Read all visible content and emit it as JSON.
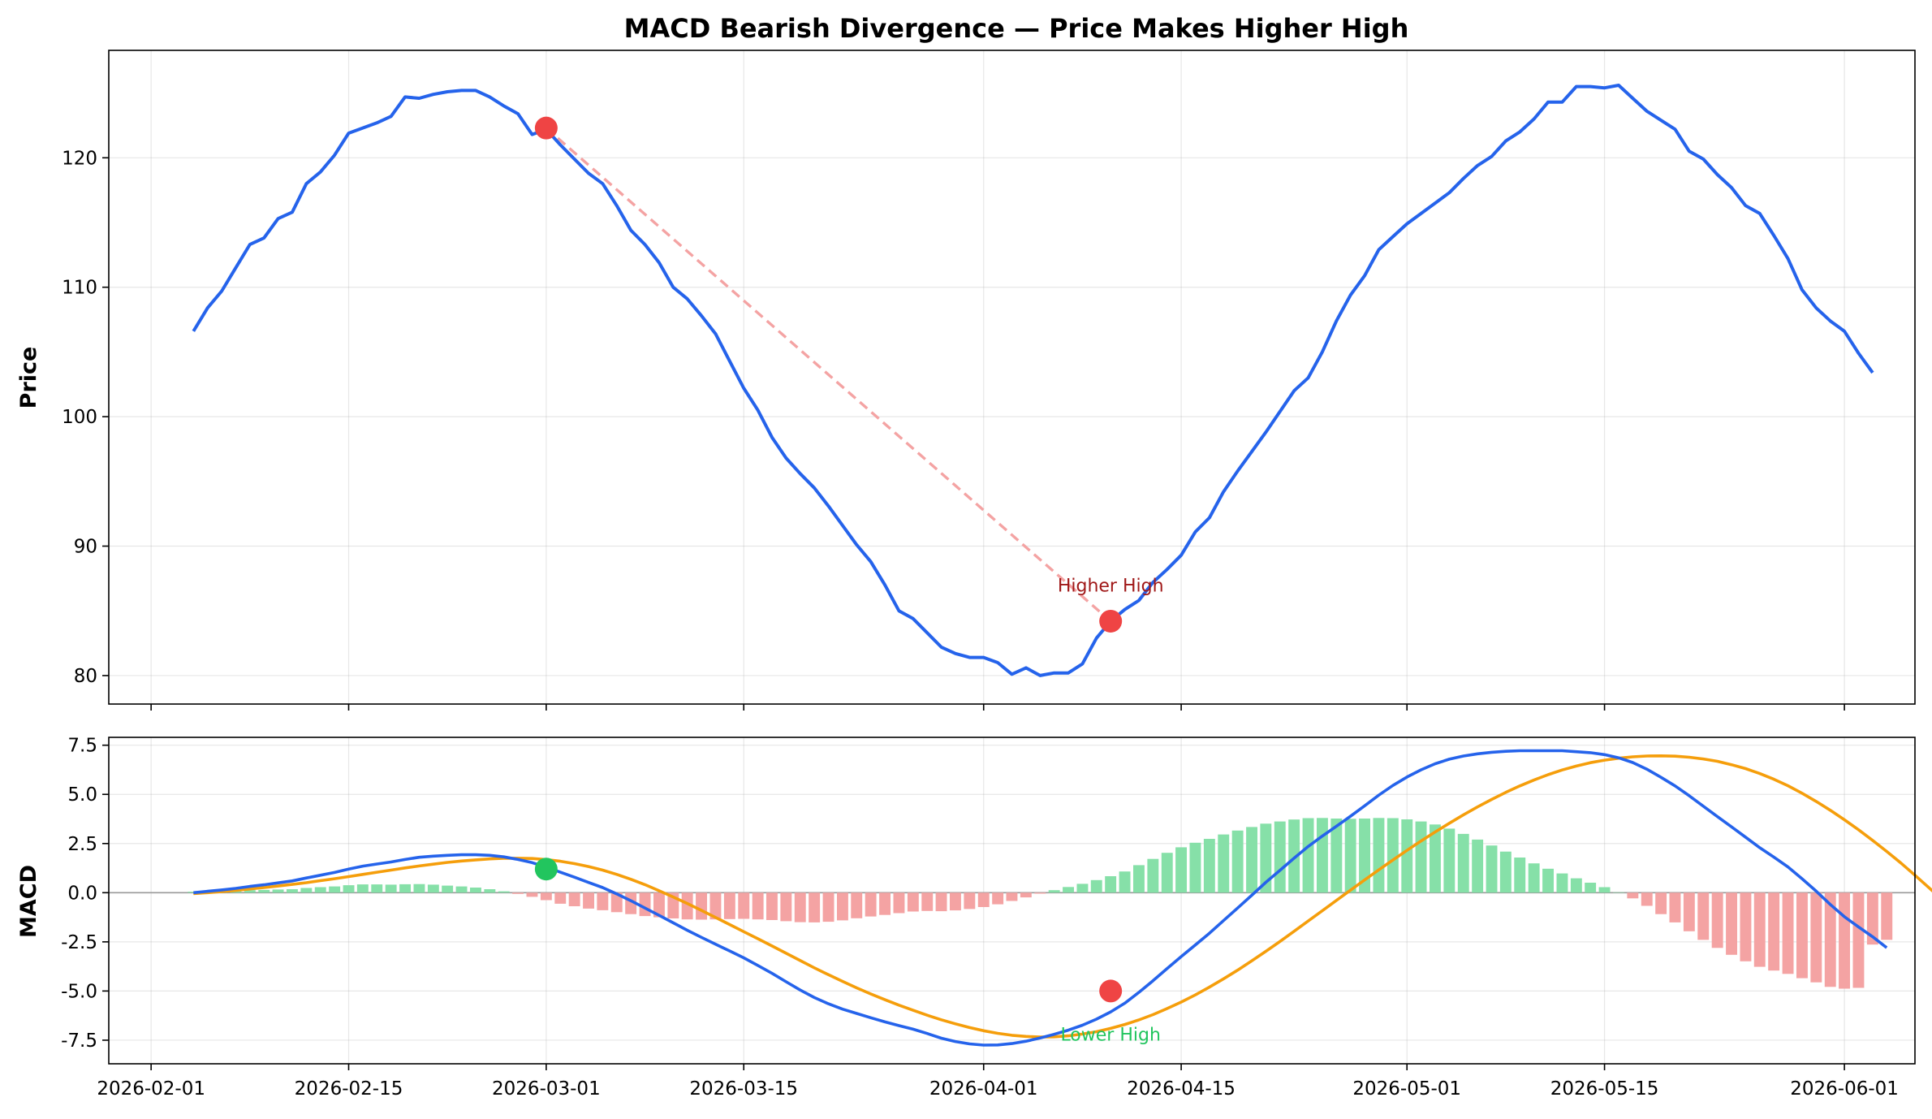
{
  "title": "MACD Bearish Divergence — Price Makes Higher High",
  "colors": {
    "price": "#2563eb",
    "macd": "#2563eb",
    "signal": "#f59e0b",
    "hist_pos": "#86e0a8",
    "hist_neg": "#f4a3a3",
    "marker_red": "#ef4444",
    "marker_green": "#22c55e",
    "divergence_line": "#f4a3a3",
    "annot_price": "#a01818",
    "annot_macd": "#22c55e"
  },
  "chart_data": [
    {
      "type": "line",
      "panel": "price",
      "ylabel": "Price",
      "ylim": [
        77.8,
        128.3
      ],
      "yticks": [
        80,
        90,
        100,
        110,
        120
      ],
      "x_start": "2026-02-04",
      "x_step_days": 1,
      "series": [
        {
          "values": [
            106.6,
            108.4,
            109.7,
            111.5,
            113.3,
            113.8,
            115.3,
            115.8,
            118.0,
            118.9,
            120.2,
            121.9,
            122.3,
            122.7,
            123.2,
            124.7,
            124.6,
            124.9,
            125.1,
            125.2,
            125.2,
            124.7,
            124.0,
            123.4,
            121.8,
            122.2,
            121.0,
            119.9,
            118.8,
            118.0,
            116.3,
            114.4,
            113.3,
            111.9,
            110.0,
            109.1,
            107.8,
            106.4,
            104.3,
            102.2,
            100.5,
            98.4,
            96.8,
            95.6,
            94.5,
            93.1,
            91.6,
            90.1,
            88.8,
            87.0,
            85.0,
            84.4,
            83.3,
            82.2,
            81.7,
            81.4,
            81.4,
            81.0,
            80.1,
            80.6,
            80.0,
            80.2,
            80.2,
            80.9,
            82.9,
            84.2,
            85.1,
            85.8,
            87.2,
            88.2,
            89.3,
            91.1,
            92.2,
            94.2,
            95.8,
            97.3,
            98.8,
            100.4,
            102.0,
            103.0,
            105.0,
            107.4,
            109.4,
            110.9,
            112.9,
            113.9,
            114.9,
            115.7,
            116.5,
            117.3,
            118.4,
            119.4,
            120.1,
            121.3,
            122.0,
            123.0,
            124.3,
            124.3,
            125.5,
            125.5,
            125.4,
            125.6,
            124.6,
            123.6,
            122.9,
            122.2,
            120.5,
            119.9,
            118.7,
            117.7,
            116.3,
            115.7,
            114.0,
            112.2,
            109.8,
            108.4,
            107.4,
            106.6,
            104.9,
            103.4
          ]
        }
      ],
      "markers": [
        {
          "x": "2026-03-01",
          "y": 122.3
        },
        {
          "x": "2026-04-10",
          "y": 84.2
        }
      ],
      "annotations": [
        {
          "text": "Higher High",
          "x": "2026-04-10",
          "y": 87.0
        }
      ]
    },
    {
      "type": "line+bar",
      "panel": "macd",
      "ylabel": "MACD",
      "ylim": [
        -8.7,
        7.9
      ],
      "yticks": [
        -7.5,
        -5.0,
        -2.5,
        0.0,
        2.5,
        5.0,
        7.5
      ],
      "ytick_labels": [
        "-7.5",
        "-5.0",
        "-2.5",
        "0.0",
        "2.5",
        "5.0",
        "7.5"
      ],
      "x_start": "2026-02-04",
      "x_step_days": 1,
      "series": [
        {
          "name": "MACD",
          "values": [
            0.0,
            0.07,
            0.14,
            0.22,
            0.32,
            0.4,
            0.5,
            0.6,
            0.75,
            0.89,
            1.03,
            1.2,
            1.35,
            1.46,
            1.56,
            1.69,
            1.8,
            1.86,
            1.9,
            1.93,
            1.93,
            1.9,
            1.82,
            1.69,
            1.53,
            1.3,
            1.04,
            0.79,
            0.52,
            0.26,
            -0.06,
            -0.41,
            -0.78,
            -1.15,
            -1.53,
            -1.91,
            -2.27,
            -2.62,
            -2.96,
            -3.31,
            -3.7,
            -4.1,
            -4.53,
            -4.95,
            -5.33,
            -5.65,
            -5.92,
            -6.14,
            -6.36,
            -6.57,
            -6.76,
            -6.94,
            -7.16,
            -7.4,
            -7.57,
            -7.69,
            -7.75,
            -7.74,
            -7.67,
            -7.55,
            -7.39,
            -7.2,
            -6.99,
            -6.74,
            -6.43,
            -6.06,
            -5.62,
            -5.07,
            -4.48,
            -3.86,
            -3.25,
            -2.66,
            -2.06,
            -1.42,
            -0.78,
            -0.13,
            0.53,
            1.14,
            1.76,
            2.35,
            2.88,
            3.38,
            3.89,
            4.42,
            4.96,
            5.45,
            5.88,
            6.25,
            6.56,
            6.79,
            6.95,
            7.06,
            7.14,
            7.19,
            7.22,
            7.22,
            7.22,
            7.22,
            7.17,
            7.12,
            7.02,
            6.86,
            6.62,
            6.28,
            5.87,
            5.43,
            4.93,
            4.4,
            3.87,
            3.35,
            2.82,
            2.29,
            1.81,
            1.31,
            0.71,
            0.08,
            -0.6,
            -1.22,
            -1.74,
            -2.24,
            -2.8
          ]
        },
        {
          "name": "Signal",
          "values": [
            -0.05,
            0.0,
            0.06,
            0.12,
            0.19,
            0.26,
            0.34,
            0.42,
            0.51,
            0.61,
            0.71,
            0.82,
            0.93,
            1.04,
            1.15,
            1.26,
            1.36,
            1.45,
            1.54,
            1.61,
            1.67,
            1.72,
            1.75,
            1.75,
            1.74,
            1.68,
            1.6,
            1.48,
            1.33,
            1.15,
            0.93,
            0.68,
            0.41,
            0.1,
            -0.22,
            -0.55,
            -0.9,
            -1.26,
            -1.62,
            -1.98,
            -2.34,
            -2.71,
            -3.08,
            -3.45,
            -3.82,
            -4.17,
            -4.51,
            -4.84,
            -5.15,
            -5.44,
            -5.72,
            -5.98,
            -6.23,
            -6.46,
            -6.67,
            -6.86,
            -7.02,
            -7.15,
            -7.25,
            -7.31,
            -7.34,
            -7.33,
            -7.28,
            -7.19,
            -7.07,
            -6.9,
            -6.7,
            -6.47,
            -6.2,
            -5.89,
            -5.56,
            -5.2,
            -4.8,
            -4.38,
            -3.94,
            -3.47,
            -2.98,
            -2.48,
            -1.96,
            -1.44,
            -0.92,
            -0.39,
            0.13,
            0.65,
            1.16,
            1.66,
            2.15,
            2.63,
            3.09,
            3.53,
            3.96,
            4.36,
            4.74,
            5.1,
            5.43,
            5.73,
            6.0,
            6.24,
            6.44,
            6.61,
            6.74,
            6.84,
            6.91,
            6.95,
            6.96,
            6.94,
            6.89,
            6.8,
            6.68,
            6.51,
            6.31,
            6.06,
            5.77,
            5.44,
            5.06,
            4.64,
            4.19,
            3.71,
            3.2,
            2.66,
            2.1,
            1.51,
            0.89,
            0.25,
            -0.4,
            -0.6
          ]
        },
        {
          "name": "Histogram",
          "values": [
            0.05,
            0.07,
            0.08,
            0.1,
            0.13,
            0.14,
            0.16,
            0.18,
            0.24,
            0.28,
            0.32,
            0.38,
            0.42,
            0.42,
            0.41,
            0.43,
            0.44,
            0.41,
            0.36,
            0.32,
            0.26,
            0.18,
            0.07,
            -0.06,
            -0.21,
            -0.38,
            -0.56,
            -0.69,
            -0.81,
            -0.89,
            -0.99,
            -1.09,
            -1.19,
            -1.25,
            -1.31,
            -1.36,
            -1.37,
            -1.36,
            -1.34,
            -1.33,
            -1.36,
            -1.39,
            -1.45,
            -1.5,
            -1.51,
            -1.48,
            -1.41,
            -1.3,
            -1.21,
            -1.13,
            -1.04,
            -0.96,
            -0.93,
            -0.94,
            -0.9,
            -0.83,
            -0.73,
            -0.59,
            -0.42,
            -0.24,
            -0.05,
            0.13,
            0.29,
            0.45,
            0.64,
            0.84,
            1.08,
            1.4,
            1.72,
            2.03,
            2.31,
            2.54,
            2.74,
            2.96,
            3.16,
            3.34,
            3.51,
            3.62,
            3.72,
            3.79,
            3.8,
            3.77,
            3.76,
            3.77,
            3.8,
            3.79,
            3.73,
            3.62,
            3.47,
            3.26,
            2.99,
            2.7,
            2.4,
            2.09,
            1.79,
            1.49,
            1.22,
            0.98,
            0.73,
            0.51,
            0.28,
            0.02,
            -0.29,
            -0.67,
            -1.09,
            -1.51,
            -1.96,
            -2.4,
            -2.81,
            -3.16,
            -3.49,
            -3.77,
            -3.96,
            -4.13,
            -4.35,
            -4.56,
            -4.79,
            -4.88,
            -4.84,
            -2.64,
            -2.4
          ]
        }
      ],
      "markers": [
        {
          "x": "2026-03-01",
          "y": 1.2,
          "color": "green"
        },
        {
          "x": "2026-04-10",
          "y": -5.0,
          "color": "red"
        }
      ],
      "annotations": [
        {
          "text": "Lower High",
          "x": "2026-04-10",
          "y": -7.2
        }
      ]
    }
  ],
  "xaxis": {
    "ticks": [
      "2026-02-01",
      "2026-02-15",
      "2026-03-01",
      "2026-03-15",
      "2026-04-01",
      "2026-04-15",
      "2026-05-01",
      "2026-05-15",
      "2026-06-01"
    ]
  }
}
